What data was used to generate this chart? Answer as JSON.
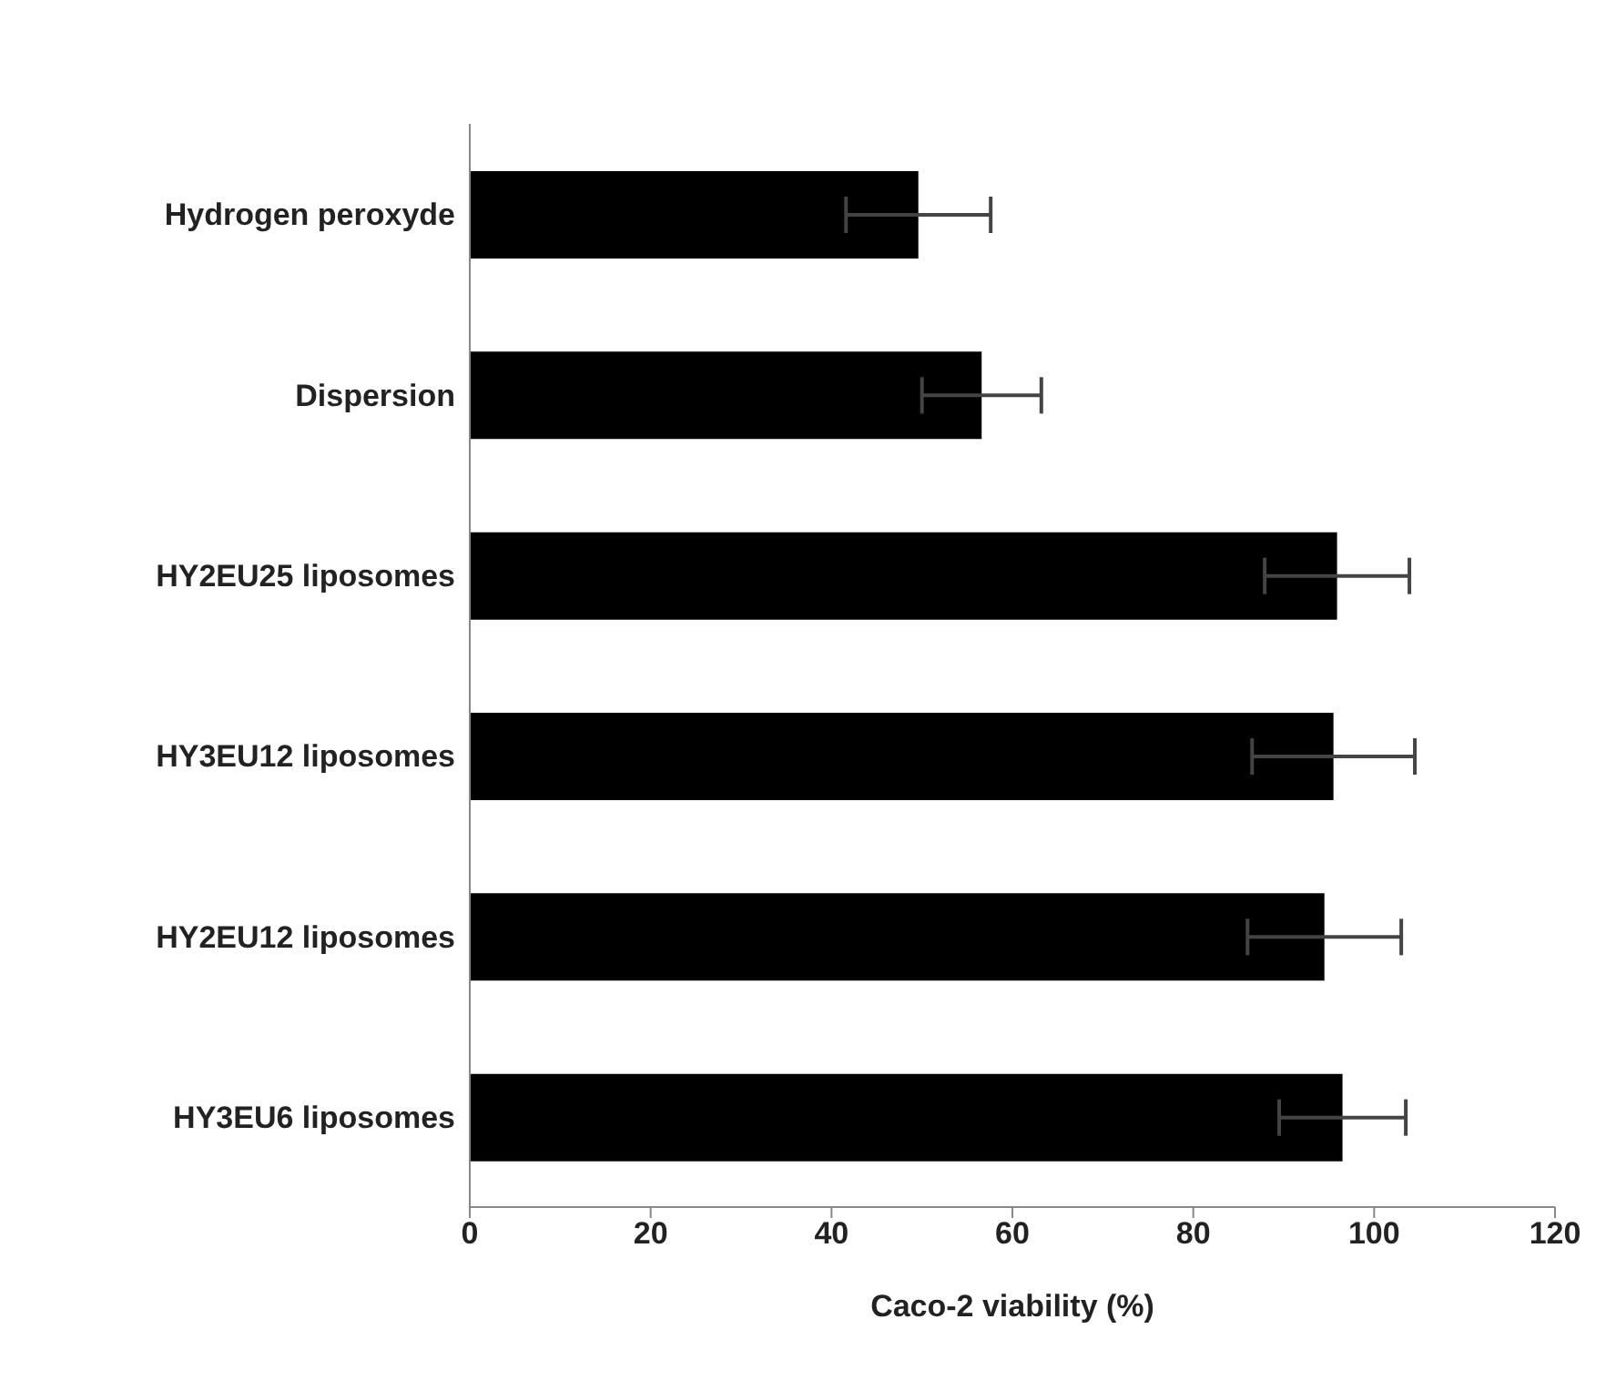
{
  "chart_data": {
    "type": "bar",
    "orientation": "horizontal",
    "xlabel": "Caco-2 viability (%)",
    "categories": [
      "Hydrogen peroxyde",
      "Dispersion",
      "HY2EU25 liposomes",
      "HY3EU12 liposomes",
      "HY2EU12 liposomes",
      "HY3EU6 liposomes"
    ],
    "values": [
      49.6,
      56.6,
      95.9,
      95.5,
      94.5,
      96.5
    ],
    "errors": [
      8,
      6.6,
      8,
      9,
      8.5,
      7
    ],
    "color": "#000000",
    "xlim": [
      0,
      120
    ],
    "xticks": [
      0,
      20,
      40,
      60,
      80,
      100,
      120
    ]
  }
}
